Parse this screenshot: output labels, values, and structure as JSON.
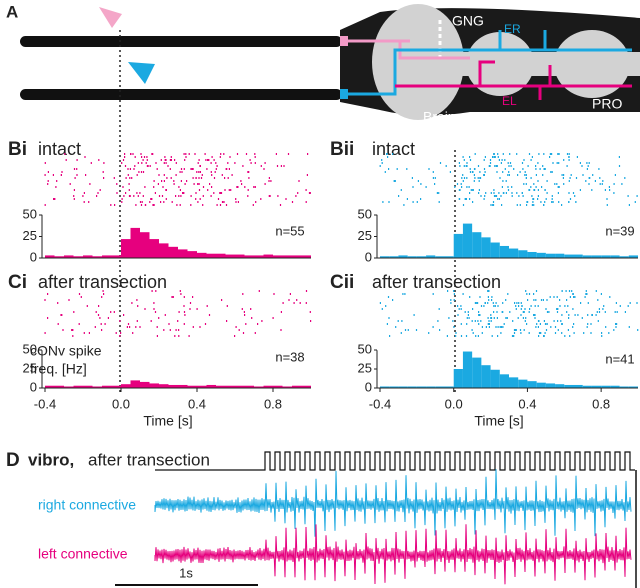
{
  "panel_a": {
    "label": "A",
    "gng": "GNG",
    "er": "ER",
    "el": "EL",
    "brain": "Brain",
    "pro": "PRO"
  },
  "chart_data": [
    {
      "type": "histogram",
      "panel_label": "Bi",
      "title": "intact",
      "annotation": "n=55",
      "color": "#e6007e",
      "bins": [
        -0.4,
        -0.35,
        -0.3,
        -0.25,
        -0.2,
        -0.15,
        -0.1,
        -0.05,
        0,
        0.05,
        0.1,
        0.15,
        0.2,
        0.25,
        0.3,
        0.35,
        0.4,
        0.45,
        0.5,
        0.55,
        0.6,
        0.65,
        0.7,
        0.75,
        0.8,
        0.85,
        0.9,
        0.95,
        1.0
      ],
      "values": [
        3,
        2,
        3,
        2,
        3,
        2,
        3,
        3,
        22,
        35,
        30,
        22,
        17,
        13,
        10,
        8,
        6,
        5,
        5,
        4,
        4,
        3,
        3,
        4,
        3,
        3,
        3,
        3
      ],
      "xlim": [
        -0.4,
        1.0
      ],
      "ylim": [
        0,
        55
      ],
      "yticks": [
        0,
        25,
        50
      ]
    },
    {
      "type": "histogram",
      "panel_label": "Bii",
      "title": "intact",
      "annotation": "n=39",
      "color": "#1ba9e1",
      "bins": [
        -0.4,
        -0.35,
        -0.3,
        -0.25,
        -0.2,
        -0.15,
        -0.1,
        -0.05,
        0,
        0.05,
        0.1,
        0.15,
        0.2,
        0.25,
        0.3,
        0.35,
        0.4,
        0.45,
        0.5,
        0.55,
        0.6,
        0.65,
        0.7,
        0.75,
        0.8,
        0.85,
        0.9,
        0.95,
        1.0
      ],
      "values": [
        2,
        2,
        3,
        2,
        2,
        3,
        2,
        2,
        28,
        40,
        30,
        24,
        18,
        14,
        11,
        9,
        7,
        6,
        5,
        5,
        4,
        4,
        3,
        3,
        3,
        3,
        2,
        3
      ],
      "xlim": [
        -0.4,
        1.0
      ],
      "ylim": [
        0,
        55
      ],
      "yticks": [
        0,
        25,
        50
      ]
    },
    {
      "type": "histogram",
      "panel_label": "Ci",
      "title": "after transection",
      "annotation": "n=38",
      "color": "#e6007e",
      "ylabel": [
        "cONv spike",
        "freq. [Hz]"
      ],
      "xlabel": "Time [s]",
      "bins": [
        -0.4,
        -0.35,
        -0.3,
        -0.25,
        -0.2,
        -0.15,
        -0.1,
        -0.05,
        0,
        0.05,
        0.1,
        0.15,
        0.2,
        0.25,
        0.3,
        0.35,
        0.4,
        0.45,
        0.5,
        0.55,
        0.6,
        0.65,
        0.7,
        0.75,
        0.8,
        0.85,
        0.9,
        0.95,
        1.0
      ],
      "values": [
        3,
        3,
        2,
        3,
        3,
        2,
        3,
        3,
        5,
        10,
        8,
        6,
        5,
        4,
        4,
        3,
        3,
        4,
        3,
        3,
        3,
        3,
        2,
        3,
        3,
        2,
        3,
        3
      ],
      "xlim": [
        -0.4,
        1.0
      ],
      "xticks": [
        -0.4,
        {
          "value": 0,
          "label": "0.0"
        },
        0.4,
        0.8
      ],
      "ylim": [
        0,
        55
      ],
      "yticks": [
        0,
        25,
        50
      ]
    },
    {
      "type": "histogram",
      "panel_label": "Cii",
      "title": "after transection",
      "annotation": "n=41",
      "color": "#1ba9e1",
      "xlabel": "Time [s]",
      "bins": [
        -0.4,
        -0.35,
        -0.3,
        -0.25,
        -0.2,
        -0.15,
        -0.1,
        -0.05,
        0,
        0.05,
        0.1,
        0.15,
        0.2,
        0.25,
        0.3,
        0.35,
        0.4,
        0.45,
        0.5,
        0.55,
        0.6,
        0.65,
        0.7,
        0.75,
        0.8,
        0.85,
        0.9,
        0.95,
        1.0
      ],
      "values": [
        2,
        2,
        2,
        2,
        2,
        2,
        2,
        2,
        25,
        48,
        40,
        30,
        24,
        18,
        14,
        11,
        9,
        7,
        6,
        5,
        4,
        4,
        3,
        3,
        3,
        3,
        2,
        2
      ],
      "xlim": [
        -0.4,
        1.0
      ],
      "xticks": [
        -0.4,
        {
          "value": 0,
          "label": "0.0"
        },
        0.4,
        0.8
      ],
      "ylim": [
        0,
        55
      ],
      "yticks": [
        0,
        25,
        50
      ]
    }
  ],
  "panel_d": {
    "label": "D",
    "stimulus": "vibro,",
    "condition": "after transection",
    "traces": [
      "right connective",
      "left connective"
    ],
    "scale_bar": "1s"
  }
}
